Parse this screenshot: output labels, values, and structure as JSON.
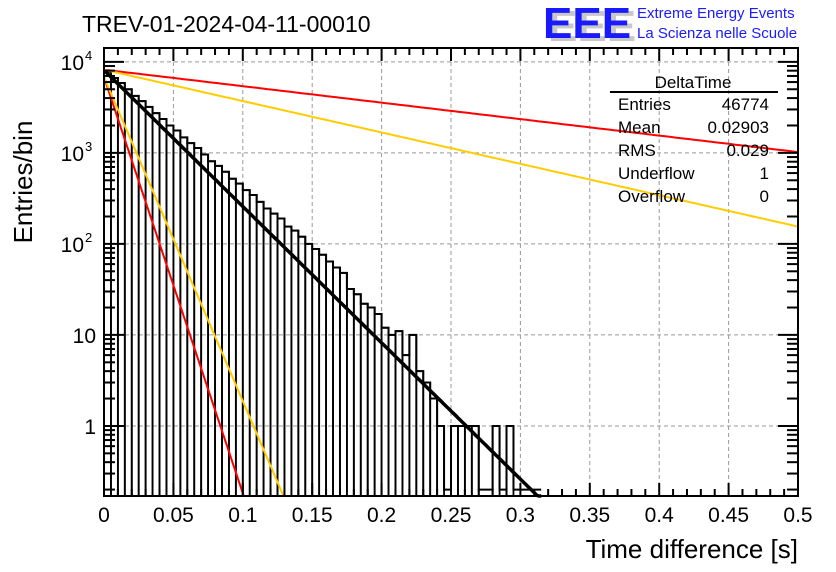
{
  "chart_data": {
    "type": "bar",
    "subtype": "histogram",
    "title": "TREV-01-2024-04-11-00010",
    "xlabel": "Time difference [s]",
    "ylabel": "Entries/bin",
    "xlim": [
      0,
      0.5
    ],
    "ylim": [
      0.17,
      14200
    ],
    "yscale": "log",
    "grid": true,
    "x_ticks": [
      "0",
      "0.05",
      "0.1",
      "0.15",
      "0.2",
      "0.25",
      "0.3",
      "0.35",
      "0.4",
      "0.45",
      "0.5"
    ],
    "x_tick_values": [
      0,
      0.05,
      0.1,
      0.15,
      0.2,
      0.25,
      0.3,
      0.35,
      0.4,
      0.45,
      0.5
    ],
    "y_ticks": [
      {
        "value": 10000,
        "base": "10",
        "exp": "4"
      },
      {
        "value": 1000,
        "base": "10",
        "exp": "3"
      },
      {
        "value": 100,
        "base": "10",
        "exp": "2"
      },
      {
        "value": 10,
        "base": "10",
        "exp": ""
      },
      {
        "value": 1,
        "base": "1",
        "exp": ""
      }
    ],
    "bin_width": 0.005,
    "bin_start": 0,
    "bins": [
      7800,
      6650,
      5850,
      5000,
      4230,
      3700,
      3200,
      2730,
      2360,
      2000,
      1760,
      1480,
      1280,
      1130,
      960,
      810,
      720,
      620,
      520,
      460,
      390,
      345,
      290,
      245,
      215,
      190,
      155,
      140,
      120,
      100,
      88,
      76,
      64,
      55,
      48,
      32,
      28,
      22,
      20,
      17,
      12,
      10,
      11,
      6,
      10,
      4,
      3,
      2,
      1,
      0.2,
      1,
      1,
      1,
      1,
      0.2,
      0.2,
      1,
      0.2,
      1,
      0.2,
      0.2,
      0.2,
      0.2
    ],
    "fits": [
      {
        "name": "black-fit",
        "color": "#000000",
        "amplitude": 8100,
        "tau": 0.029,
        "x_range": [
          0,
          0.315
        ]
      },
      {
        "name": "red-fast",
        "color": "#ff0000",
        "amplitude": 6800,
        "tau": 0.0095,
        "x_range": [
          0,
          0.111
        ]
      },
      {
        "name": "orange-fast",
        "color": "#ffcc00",
        "amplitude": 6800,
        "tau": 0.0122,
        "x_range": [
          0,
          0.139
        ]
      },
      {
        "name": "red-slow",
        "color": "#ff0000",
        "amplitude": 8200,
        "tau": 0.24,
        "x_range": [
          0,
          0.5
        ]
      },
      {
        "name": "orange-slow",
        "color": "#ffcc00",
        "amplitude": 8200,
        "tau": 0.126,
        "x_range": [
          0,
          0.5
        ]
      }
    ],
    "stats_box": {
      "title": "DeltaTime",
      "rows": [
        {
          "label": "Entries",
          "value": "46774"
        },
        {
          "label": "Mean",
          "value": "0.02903"
        },
        {
          "label": "RMS",
          "value": "0.029"
        },
        {
          "label": "Underflow",
          "value": "1"
        },
        {
          "label": "Overflow",
          "value": "0"
        }
      ]
    }
  },
  "logo": {
    "mark": "EEE",
    "line1": "Extreme Energy Events",
    "line2": "La Scienza nelle Scuole",
    "color": "#1a1aff"
  }
}
